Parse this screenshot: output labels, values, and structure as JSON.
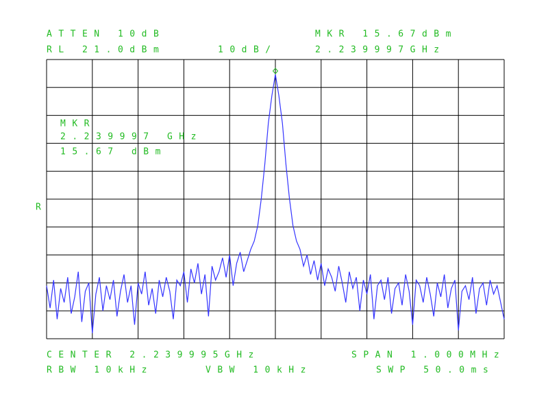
{
  "chart_data": {
    "type": "line",
    "labels": {
      "atten": "ATTEN 10dB",
      "rl": "RL 21.0dBm",
      "scale": "10dB/",
      "mkr_top": "MKR 15.67dBm",
      "mkr_freq_top": "2.239997GHz",
      "mkr_box": [
        "MKR",
        "2.239997 GHz",
        "15.67 dBm"
      ],
      "r": "R",
      "center": "CENTER 2.239995GHz",
      "span": "SPAN 1.000MHz",
      "rbw": "RBW 10kHz",
      "vbw": "VBW 10kHz",
      "swp": "SWP 50.0ms"
    },
    "ylim": [
      -79,
      21
    ],
    "grid": true,
    "color": "#3333ff",
    "marker_color": "#22bb22",
    "values": [
      -60,
      -68,
      -58,
      -72,
      -61,
      -66,
      -57,
      -70,
      -64,
      -55,
      -73,
      -62,
      -59,
      -77,
      -63,
      -57,
      -69,
      -60,
      -65,
      -58,
      -71,
      -62,
      -56,
      -66,
      -60,
      -74,
      -59,
      -63,
      -55,
      -67,
      -61,
      -70,
      -58,
      -64,
      -57,
      -62,
      -72,
      -58,
      -60,
      -55,
      -66,
      -54,
      -59,
      -52,
      -63,
      -56,
      -71,
      -53,
      -58,
      -55,
      -50,
      -57,
      -49,
      -60,
      -52,
      -48,
      -55,
      -51,
      -47,
      -44,
      -38.5,
      -28.8,
      -16.5,
      -1.8,
      8,
      15.67,
      8,
      -1.8,
      -16.5,
      -28.8,
      -38.5,
      -44,
      -47,
      -53,
      -49,
      -56,
      -51,
      -58,
      -52,
      -60,
      -54,
      -57,
      -62,
      -53,
      -59,
      -66,
      -55,
      -61,
      -57,
      -69,
      -58,
      -63,
      -56,
      -72,
      -60,
      -58,
      -65,
      -57,
      -70,
      -61,
      -59,
      -67,
      -56,
      -62,
      -74,
      -58,
      -60,
      -66,
      -57,
      -63,
      -71,
      -59,
      -64,
      -56,
      -68,
      -61,
      -58,
      -76,
      -62,
      -60,
      -65,
      -57,
      -70,
      -61,
      -59,
      -67,
      -58,
      -63,
      -60,
      -66,
      -72
    ]
  }
}
